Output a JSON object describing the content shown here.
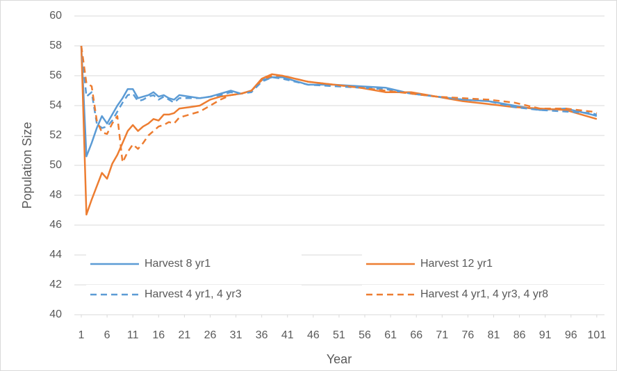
{
  "chart_data": {
    "type": "line",
    "x_label": "Year",
    "y_label": "Population Size",
    "x": [
      1,
      2,
      3,
      4,
      5,
      6,
      7,
      8,
      9,
      10,
      11,
      12,
      13,
      14,
      15,
      16,
      17,
      18,
      19,
      20,
      22,
      24,
      26,
      28,
      30,
      32,
      34,
      36,
      38,
      40,
      45,
      50,
      55,
      60,
      65,
      70,
      75,
      80,
      85,
      90,
      95,
      100,
      101
    ],
    "series": [
      {
        "name": "Harvest 8 yr1",
        "color": "#5b9bd5",
        "style": "solid",
        "values": [
          58,
          50.6,
          51.5,
          52.5,
          53.3,
          52.8,
          53.4,
          54.0,
          54.5,
          55.1,
          55.1,
          54.5,
          54.6,
          54.7,
          54.9,
          54.6,
          54.7,
          54.5,
          54.4,
          54.7,
          54.6,
          54.5,
          54.6,
          54.8,
          55.0,
          54.8,
          55.0,
          55.7,
          55.9,
          55.9,
          55.4,
          55.4,
          55.3,
          55.2,
          54.8,
          54.6,
          54.4,
          54.3,
          54.0,
          53.7,
          53.8,
          53.4,
          53.3
        ]
      },
      {
        "name": "Harvest 12 yr1",
        "color": "#ed7d31",
        "style": "solid",
        "values": [
          58,
          46.7,
          47.7,
          48.6,
          49.5,
          49.1,
          50.1,
          50.7,
          51.5,
          52.3,
          52.7,
          52.3,
          52.6,
          52.8,
          53.1,
          53.0,
          53.4,
          53.4,
          53.5,
          53.8,
          53.9,
          54.0,
          54.4,
          54.6,
          54.7,
          54.8,
          55.0,
          55.8,
          56.1,
          56.0,
          55.6,
          55.4,
          55.2,
          54.9,
          54.9,
          54.6,
          54.3,
          54.1,
          53.9,
          53.8,
          53.7,
          53.2,
          53.1
        ]
      },
      {
        "name": "Harvest 4 yr1, 4 yr3",
        "color": "#5b9bd5",
        "style": "dashed",
        "values": [
          58,
          54.6,
          54.9,
          52.8,
          52.5,
          52.6,
          53.0,
          53.6,
          54.2,
          54.7,
          54.8,
          54.3,
          54.4,
          54.6,
          54.7,
          54.4,
          54.6,
          54.4,
          54.2,
          54.5,
          54.5,
          54.5,
          54.6,
          54.7,
          54.9,
          54.8,
          54.9,
          55.6,
          55.9,
          55.8,
          55.4,
          55.3,
          55.2,
          55.1,
          54.8,
          54.6,
          54.4,
          54.3,
          53.9,
          53.7,
          53.6,
          53.5,
          53.4
        ]
      },
      {
        "name": "Harvest 4 yr1, 4 yr3, 4 yr8",
        "color": "#ed7d31",
        "style": "dashed",
        "values": [
          58,
          55.5,
          55.3,
          53.0,
          52.2,
          52.1,
          52.8,
          53.3,
          50.2,
          50.9,
          51.4,
          51.1,
          51.5,
          52.0,
          52.3,
          52.6,
          52.7,
          52.9,
          52.8,
          53.2,
          53.4,
          53.6,
          54.0,
          54.4,
          54.7,
          54.8,
          55.0,
          55.7,
          56.0,
          56.0,
          55.6,
          55.4,
          55.2,
          55.0,
          54.8,
          54.6,
          54.5,
          54.4,
          54.2,
          53.8,
          53.8,
          53.6,
          53.5
        ]
      }
    ],
    "xlim": [
      -0.35,
      102.5
    ],
    "xticks": [
      1,
      6,
      11,
      16,
      21,
      26,
      31,
      36,
      41,
      46,
      51,
      56,
      61,
      66,
      71,
      76,
      81,
      86,
      91,
      96,
      101
    ],
    "ylim": [
      40,
      60
    ],
    "yticks": [
      40,
      42,
      44,
      46,
      48,
      50,
      52,
      54,
      56,
      58,
      60
    ],
    "grid": true,
    "legend": "bottom"
  }
}
